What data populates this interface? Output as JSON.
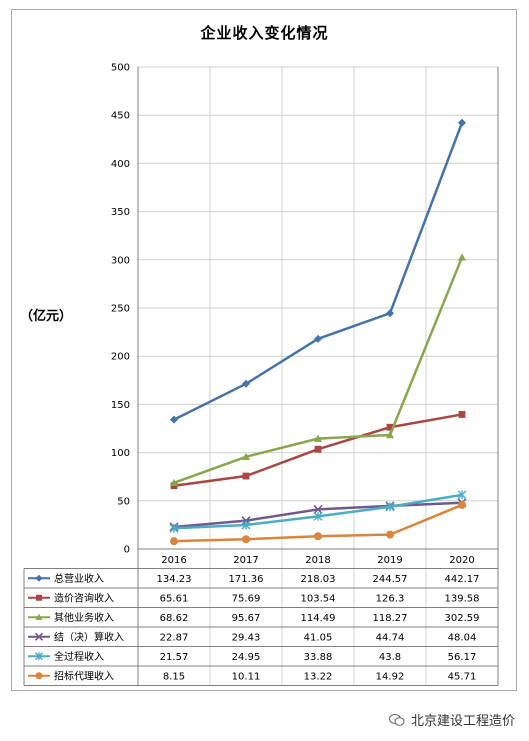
{
  "chart_data": {
    "type": "line",
    "title": "企业收入变化情况",
    "ylabel": "（亿元）",
    "xlabel": "",
    "ylim": [
      0,
      500
    ],
    "yticks": [
      0,
      50,
      100,
      150,
      200,
      250,
      300,
      350,
      400,
      450,
      500
    ],
    "categories": [
      "2016",
      "2017",
      "2018",
      "2019",
      "2020"
    ],
    "grid": true,
    "legend": "data-table-below",
    "series": [
      {
        "name": "总营业收入",
        "color": "#4572a7",
        "marker": "diamond",
        "values": [
          134.23,
          171.36,
          218.03,
          244.57,
          442.17
        ]
      },
      {
        "name": "造价咨询收入",
        "color": "#aa4643",
        "marker": "square",
        "values": [
          65.61,
          75.69,
          103.54,
          126.3,
          139.58
        ]
      },
      {
        "name": "其他业务收入",
        "color": "#89a54e",
        "marker": "triangle",
        "values": [
          68.62,
          95.67,
          114.49,
          118.27,
          302.59
        ]
      },
      {
        "name": "结（决）算收入",
        "color": "#71588f",
        "marker": "x",
        "values": [
          22.87,
          29.43,
          41.05,
          44.74,
          48.04
        ]
      },
      {
        "name": "全过程收入",
        "color": "#4bacc6",
        "marker": "star",
        "values": [
          21.57,
          24.95,
          33.88,
          43.8,
          56.17
        ]
      },
      {
        "name": "招标代理收入",
        "color": "#db843d",
        "marker": "circle",
        "values": [
          8.15,
          10.11,
          13.22,
          14.92,
          45.71
        ]
      }
    ]
  },
  "watermark": {
    "text": "北京建设工程造价",
    "icon": "wechat-icon"
  }
}
